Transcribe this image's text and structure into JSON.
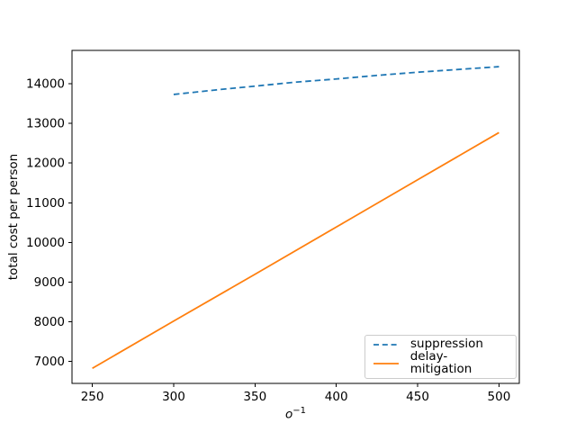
{
  "figure": {
    "background": "#ffffff",
    "axes_edge_color": "#000000",
    "text_color": "#000000"
  },
  "chart_data": {
    "type": "line",
    "xlabel": {
      "base": "o",
      "superscript": "−1"
    },
    "ylabel": "total cost per person",
    "xlim": [
      237.5,
      512.5
    ],
    "ylim": [
      6450,
      14840
    ],
    "x_ticks": [
      250,
      300,
      350,
      400,
      450,
      500
    ],
    "y_ticks": [
      7000,
      8000,
      9000,
      10000,
      11000,
      12000,
      13000,
      14000
    ],
    "grid": false,
    "legend_position": "lower right",
    "series": [
      {
        "name": "suppression",
        "color": "#1f77b4",
        "style": "dashed",
        "x": [
          300,
          325,
          350,
          375,
          400,
          425,
          450,
          475,
          500
        ],
        "values": [
          13730,
          13840,
          13940,
          14040,
          14120,
          14210,
          14290,
          14360,
          14430
        ]
      },
      {
        "name": "delay-mitigation",
        "color": "#ff7f0e",
        "style": "solid",
        "x": [
          250,
          300,
          350,
          400,
          450,
          500
        ],
        "values": [
          6830,
          8020,
          9200,
          10390,
          11580,
          12770
        ]
      }
    ]
  }
}
